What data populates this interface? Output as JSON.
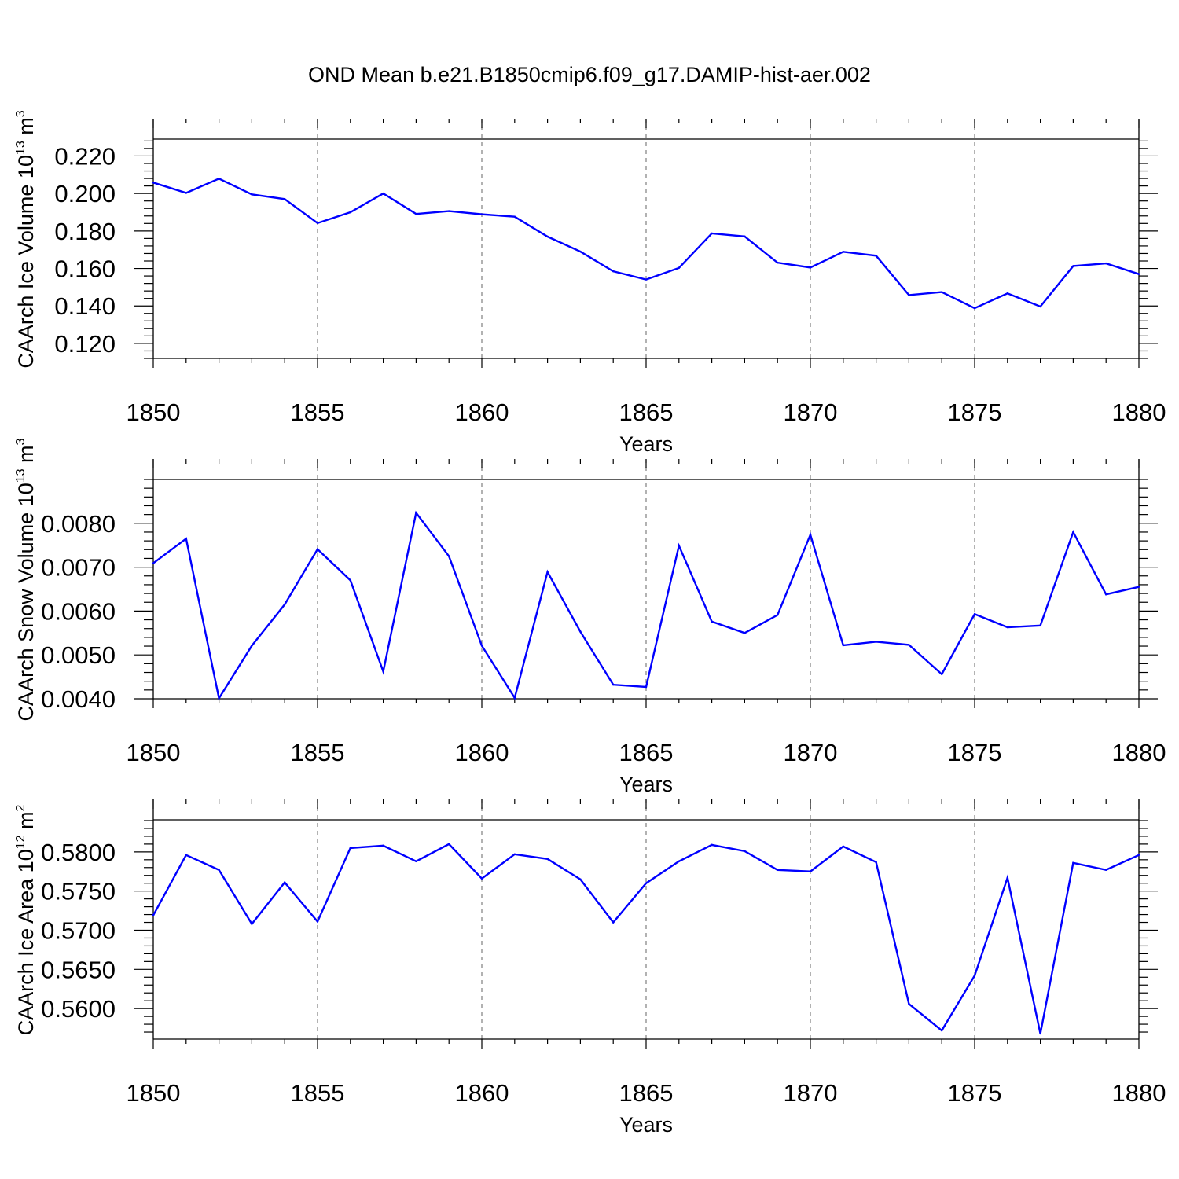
{
  "title": "OND Mean b.e21.B1850cmip6.f09_g17.DAMIP-hist-aer.002",
  "colors": {
    "line": "#0000ff",
    "axis": "#000000",
    "grid": "#888888"
  },
  "chart_data": [
    {
      "type": "line",
      "name": "ice-volume",
      "xlabel": "Years",
      "ylabel": {
        "prefix": "CAArch Ice Volume 10",
        "exp": "13",
        "unit": " m",
        "unit_exp": "3"
      },
      "xlim": [
        1850,
        1880
      ],
      "ylim": [
        0.112,
        0.229
      ],
      "xticks": [
        1850,
        1855,
        1860,
        1865,
        1870,
        1875,
        1880
      ],
      "xtick_labels": [
        "1850",
        "1855",
        "1860",
        "1865",
        "1870",
        "1875",
        "1880"
      ],
      "yticks": [
        0.12,
        0.14,
        0.16,
        0.18,
        0.2,
        0.22
      ],
      "ytick_labels": [
        "0.120",
        "0.140",
        "0.160",
        "0.180",
        "0.200",
        "0.220"
      ],
      "grid_x": true,
      "x": [
        1850,
        1851,
        1852,
        1853,
        1854,
        1855,
        1856,
        1857,
        1858,
        1859,
        1860,
        1861,
        1862,
        1863,
        1864,
        1865,
        1866,
        1867,
        1868,
        1869,
        1870,
        1871,
        1872,
        1873,
        1874,
        1875,
        1876,
        1877,
        1878,
        1879,
        1880
      ],
      "values": [
        0.2058,
        0.2003,
        0.2079,
        0.1995,
        0.197,
        0.1842,
        0.19,
        0.2,
        0.1891,
        0.1906,
        0.1889,
        0.1876,
        0.177,
        0.169,
        0.1585,
        0.1541,
        0.1603,
        0.1787,
        0.1771,
        0.1631,
        0.1605,
        0.1689,
        0.1668,
        0.1458,
        0.1474,
        0.1388,
        0.1467,
        0.1397,
        0.1613,
        0.1627,
        0.157
      ]
    },
    {
      "type": "line",
      "name": "snow-volume",
      "xlabel": "Years",
      "ylabel": {
        "prefix": "CAArch Snow Volume 10",
        "exp": "13",
        "unit": " m",
        "unit_exp": "3"
      },
      "xlim": [
        1850,
        1880
      ],
      "ylim": [
        0.004,
        0.009
      ],
      "xticks": [
        1850,
        1855,
        1860,
        1865,
        1870,
        1875,
        1880
      ],
      "xtick_labels": [
        "1850",
        "1855",
        "1860",
        "1865",
        "1870",
        "1875",
        "1880"
      ],
      "yticks": [
        0.004,
        0.005,
        0.006,
        0.007,
        0.008
      ],
      "ytick_labels": [
        "0.0040",
        "0.0050",
        "0.0060",
        "0.0070",
        "0.0080"
      ],
      "grid_x": true,
      "x": [
        1850,
        1851,
        1852,
        1853,
        1854,
        1855,
        1856,
        1857,
        1858,
        1859,
        1860,
        1861,
        1862,
        1863,
        1864,
        1865,
        1866,
        1867,
        1868,
        1869,
        1870,
        1871,
        1872,
        1873,
        1874,
        1875,
        1876,
        1877,
        1878,
        1879,
        1880
      ],
      "values": [
        0.00709,
        0.00765,
        0.00401,
        0.00521,
        0.00615,
        0.00741,
        0.0067,
        0.00462,
        0.00824,
        0.00725,
        0.00521,
        0.00402,
        0.00689,
        0.00553,
        0.00432,
        0.00427,
        0.00749,
        0.00576,
        0.0055,
        0.00591,
        0.00774,
        0.00522,
        0.0053,
        0.00523,
        0.00456,
        0.00593,
        0.00563,
        0.00567,
        0.0078,
        0.00638,
        0.00655
      ]
    },
    {
      "type": "line",
      "name": "ice-area",
      "xlabel": "Years",
      "ylabel": {
        "prefix": "CAArch Ice Area 10",
        "exp": "12",
        "unit": " m",
        "unit_exp": "2"
      },
      "xlim": [
        1850,
        1880
      ],
      "ylim": [
        0.5561,
        0.5841
      ],
      "xticks": [
        1850,
        1855,
        1860,
        1865,
        1870,
        1875,
        1880
      ],
      "xtick_labels": [
        "1850",
        "1855",
        "1860",
        "1865",
        "1870",
        "1875",
        "1880"
      ],
      "yticks": [
        0.56,
        0.565,
        0.57,
        0.575,
        0.58
      ],
      "ytick_labels": [
        "0.5600",
        "0.5650",
        "0.5700",
        "0.5750",
        "0.5800"
      ],
      "grid_x": true,
      "x": [
        1850,
        1851,
        1852,
        1853,
        1854,
        1855,
        1856,
        1857,
        1858,
        1859,
        1860,
        1861,
        1862,
        1863,
        1864,
        1865,
        1866,
        1867,
        1868,
        1869,
        1870,
        1871,
        1872,
        1873,
        1874,
        1875,
        1876,
        1877,
        1878,
        1879,
        1880
      ],
      "values": [
        0.5719,
        0.5796,
        0.5777,
        0.5708,
        0.5761,
        0.5711,
        0.5805,
        0.5808,
        0.5788,
        0.581,
        0.5766,
        0.5797,
        0.5791,
        0.5765,
        0.571,
        0.576,
        0.5788,
        0.5809,
        0.5801,
        0.5777,
        0.5775,
        0.5807,
        0.5787,
        0.5606,
        0.5572,
        0.5642,
        0.5767,
        0.5568,
        0.5786,
        0.5777,
        0.5796
      ]
    }
  ]
}
